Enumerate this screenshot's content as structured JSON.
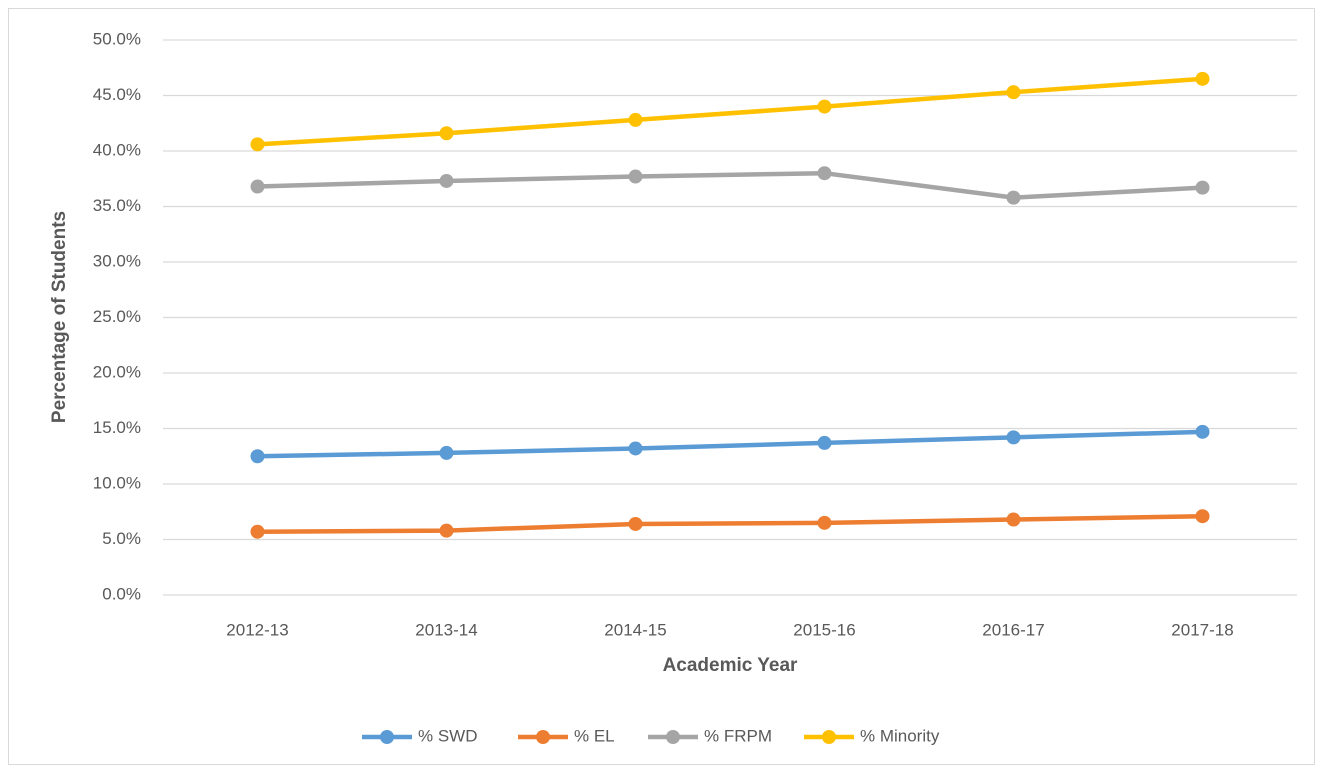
{
  "chart_data": {
    "type": "line",
    "xlabel": "Academic Year",
    "ylabel": "Percentage of Students",
    "categories": [
      "2012-13",
      "2013-14",
      "2014-15",
      "2015-16",
      "2016-17",
      "2017-18"
    ],
    "series": [
      {
        "name": "% SWD",
        "color": "#5b9bd5",
        "values": [
          12.5,
          12.8,
          13.2,
          13.7,
          14.2,
          14.7
        ]
      },
      {
        "name": "% EL",
        "color": "#ed7d31",
        "values": [
          5.7,
          5.8,
          6.4,
          6.5,
          6.8,
          7.1
        ]
      },
      {
        "name": "% FRPM",
        "color": "#a5a5a5",
        "values": [
          36.8,
          37.3,
          37.7,
          38.0,
          35.8,
          36.7
        ]
      },
      {
        "name": "% Minority",
        "color": "#ffc000",
        "values": [
          40.6,
          41.6,
          42.8,
          44.0,
          45.3,
          46.5
        ]
      }
    ],
    "ylim": [
      0,
      50
    ],
    "yticks": [
      {
        "value": 0,
        "label": "0.0%"
      },
      {
        "value": 5,
        "label": "5.0%"
      },
      {
        "value": 10,
        "label": "10.0%"
      },
      {
        "value": 15,
        "label": "15.0%"
      },
      {
        "value": 20,
        "label": "20.0%"
      },
      {
        "value": 25,
        "label": "25.0%"
      },
      {
        "value": 30,
        "label": "30.0%"
      },
      {
        "value": 35,
        "label": "35.0%"
      },
      {
        "value": 40,
        "label": "40.0%"
      },
      {
        "value": 45,
        "label": "45.0%"
      },
      {
        "value": 50,
        "label": "50.0%"
      }
    ],
    "grid": true,
    "legend": "bottom"
  }
}
